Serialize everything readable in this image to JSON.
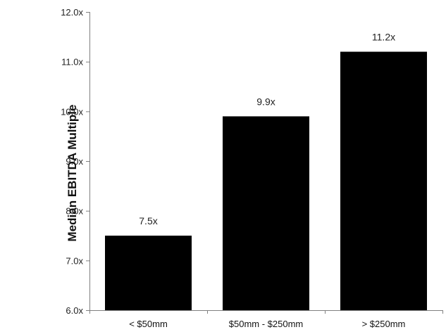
{
  "chart_data": {
    "type": "bar",
    "categories": [
      "< $50mm",
      "$50mm - $250mm",
      "> $250mm"
    ],
    "values": [
      7.5,
      9.9,
      11.2
    ],
    "data_labels": [
      "7.5x",
      "9.9x",
      "11.2x"
    ],
    "ylabel": "Median EBITDA Multiple",
    "ylim": [
      6.0,
      12.0
    ],
    "yticks": [
      6.0,
      7.0,
      8.0,
      9.0,
      10.0,
      11.0,
      12.0
    ],
    "ytick_labels": [
      "6.0x",
      "7.0x",
      "8.0x",
      "9.0x",
      "10.0x",
      "11.0x",
      "12.0x"
    ],
    "grid": false,
    "bar_color": "#000000"
  }
}
